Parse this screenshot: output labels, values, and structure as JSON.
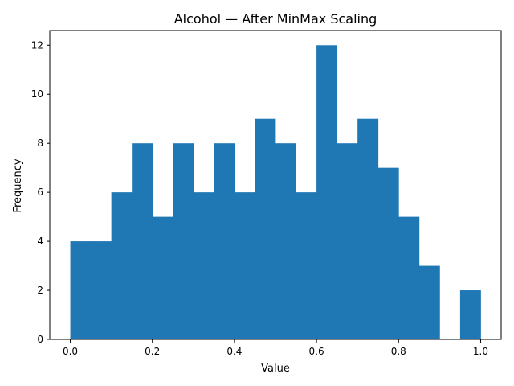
{
  "chart_data": {
    "type": "bar",
    "subtype": "histogram",
    "title": "Alcohol — After MinMax Scaling",
    "xlabel": "Value",
    "ylabel": "Frequency",
    "bin_edges": [
      0.0,
      0.05,
      0.1,
      0.15,
      0.2,
      0.25,
      0.3,
      0.35,
      0.4,
      0.45,
      0.5,
      0.55,
      0.6,
      0.65,
      0.7,
      0.75,
      0.8,
      0.85,
      0.9,
      0.95,
      1.0
    ],
    "values": [
      4,
      4,
      6,
      8,
      5,
      8,
      6,
      8,
      6,
      9,
      8,
      6,
      12,
      8,
      9,
      7,
      5,
      3,
      0,
      2
    ],
    "xlim": [
      -0.05,
      1.05
    ],
    "ylim": [
      0,
      12.6
    ],
    "xticks": [
      "0.0",
      "0.2",
      "0.4",
      "0.6",
      "0.8",
      "1.0"
    ],
    "yticks": [
      "0",
      "2",
      "4",
      "6",
      "8",
      "10",
      "12"
    ],
    "bar_color": "#1f77b4",
    "grid": false,
    "legend": "none"
  }
}
